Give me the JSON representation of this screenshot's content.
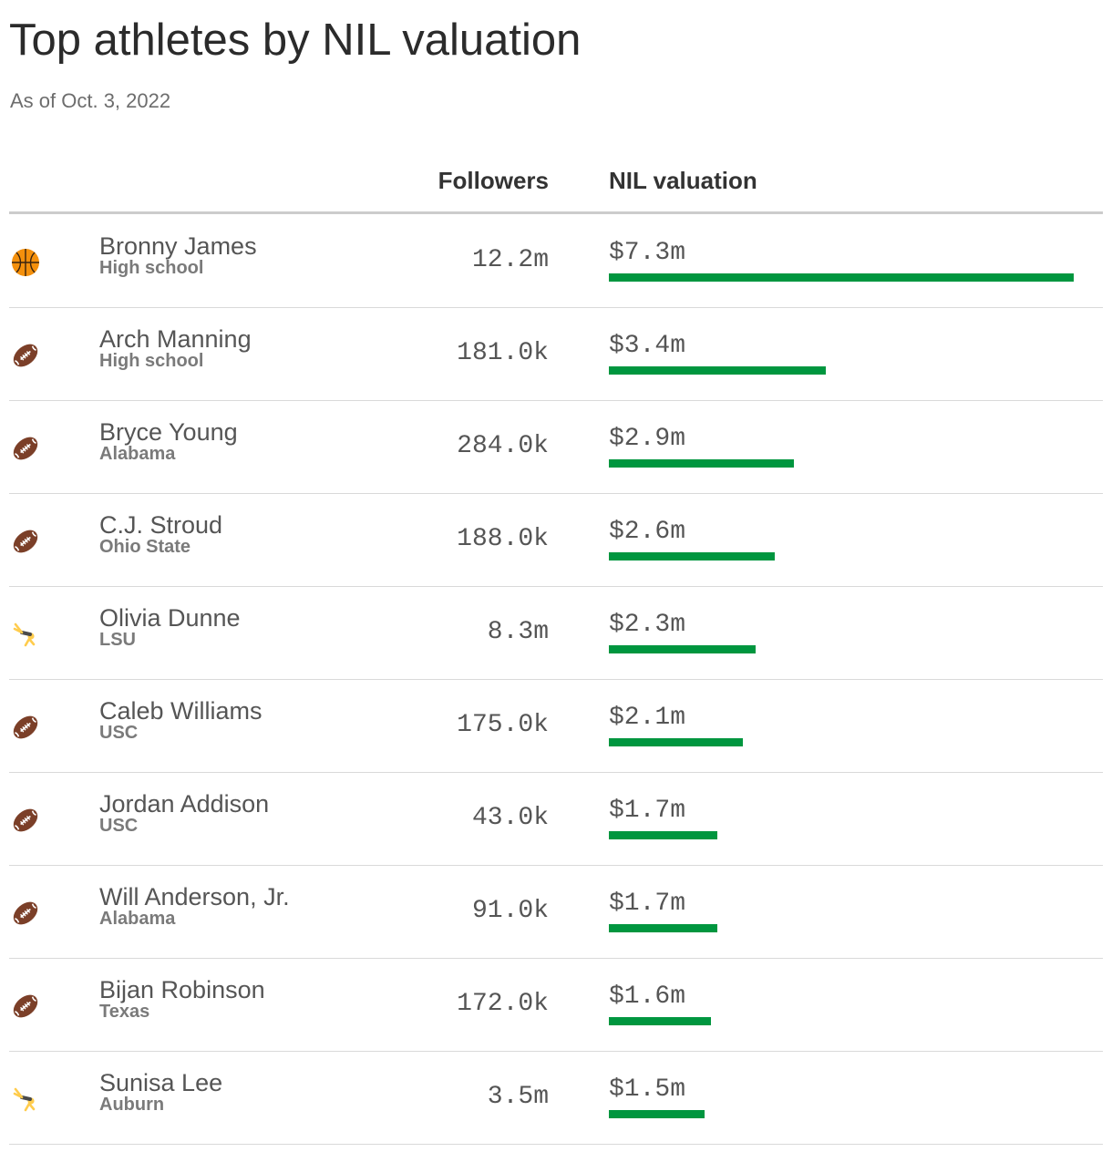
{
  "title": "Top athletes by NIL valuation",
  "subtitle": "As of Oct. 3, 2022",
  "columns": {
    "followers": "Followers",
    "nil": "NIL valuation"
  },
  "colors": {
    "bar": "#00963f",
    "text": "#333333",
    "muted": "#7a7a7a",
    "rule": "#d9d9d9"
  },
  "chart_data": {
    "type": "bar",
    "title": "Top athletes by NIL valuation",
    "subtitle": "As of Oct. 3, 2022",
    "orientation": "horizontal",
    "unit": "million USD",
    "xlim": [
      0,
      7.3
    ],
    "grid": false,
    "legend": "none",
    "rows": [
      {
        "name": "Bronny James",
        "school": "High school",
        "sport_icon": "basketball-icon",
        "followers": "12.2m",
        "value_label": "$7.3m",
        "value": 7.3
      },
      {
        "name": "Arch Manning",
        "school": "High school",
        "sport_icon": "football-icon",
        "followers": "181.0k",
        "value_label": "$3.4m",
        "value": 3.4
      },
      {
        "name": "Bryce Young",
        "school": "Alabama",
        "sport_icon": "football-icon",
        "followers": "284.0k",
        "value_label": "$2.9m",
        "value": 2.9
      },
      {
        "name": "C.J. Stroud",
        "school": "Ohio State",
        "sport_icon": "football-icon",
        "followers": "188.0k",
        "value_label": "$2.6m",
        "value": 2.6
      },
      {
        "name": "Olivia Dunne",
        "school": "LSU",
        "sport_icon": "gymnast-icon",
        "followers": "8.3m",
        "value_label": "$2.3m",
        "value": 2.3
      },
      {
        "name": "Caleb Williams",
        "school": "USC",
        "sport_icon": "football-icon",
        "followers": "175.0k",
        "value_label": "$2.1m",
        "value": 2.1
      },
      {
        "name": "Jordan Addison",
        "school": "USC",
        "sport_icon": "football-icon",
        "followers": "43.0k",
        "value_label": "$1.7m",
        "value": 1.7
      },
      {
        "name": "Will Anderson, Jr.",
        "school": "Alabama",
        "sport_icon": "football-icon",
        "followers": "91.0k",
        "value_label": "$1.7m",
        "value": 1.7
      },
      {
        "name": "Bijan Robinson",
        "school": "Texas",
        "sport_icon": "football-icon",
        "followers": "172.0k",
        "value_label": "$1.6m",
        "value": 1.6
      },
      {
        "name": "Sunisa Lee",
        "school": "Auburn",
        "sport_icon": "gymnast-icon",
        "followers": "3.5m",
        "value_label": "$1.5m",
        "value": 1.5
      }
    ]
  }
}
